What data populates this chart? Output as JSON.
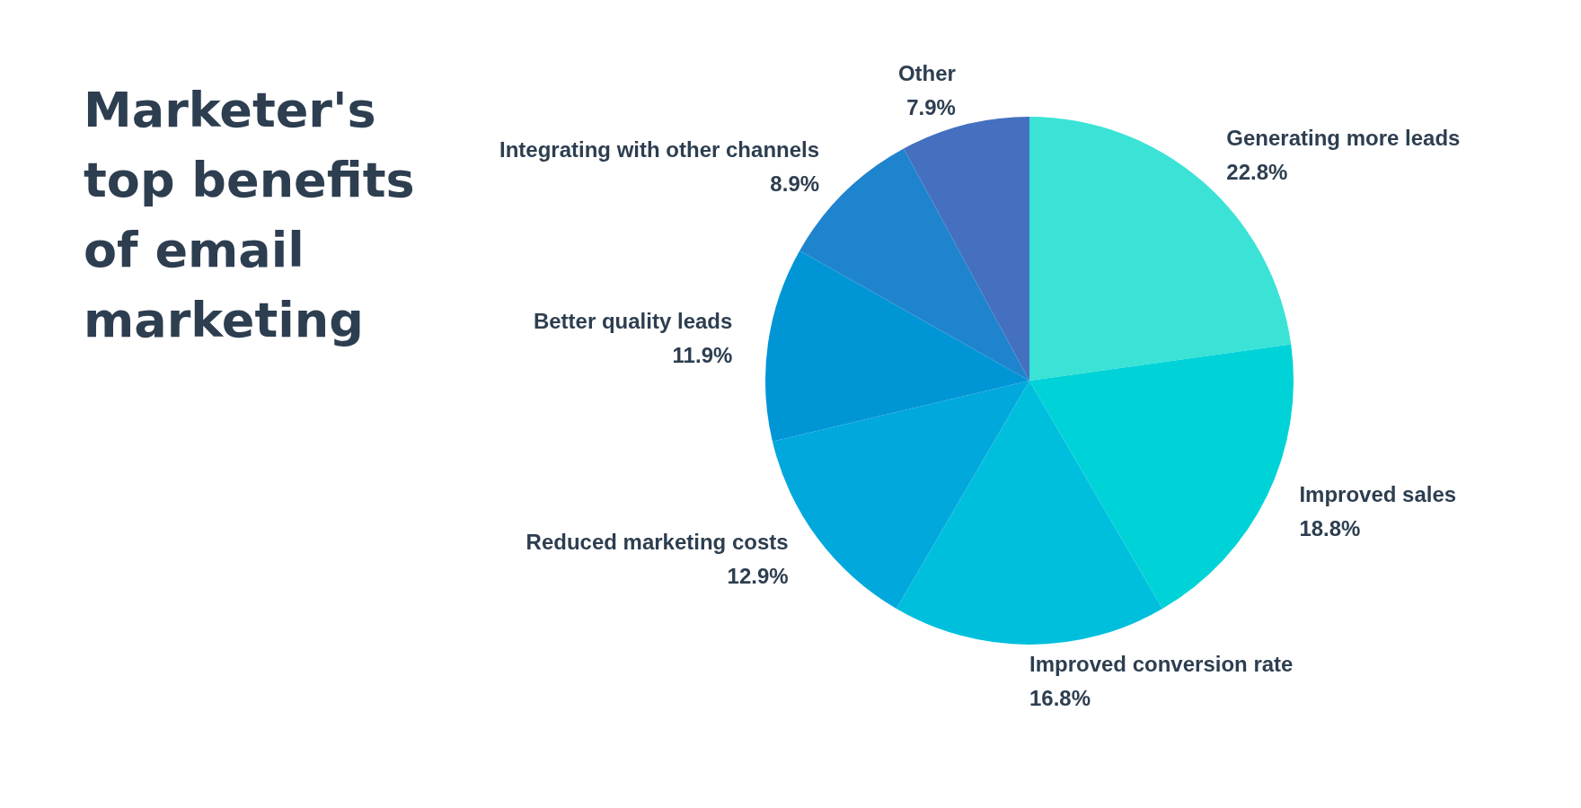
{
  "chart_data": {
    "type": "pie",
    "title": "Marketer's top benefits of email marketing",
    "categories": [
      "Generating more leads",
      "Improved sales",
      "Improved conversion rate",
      "Reduced marketing costs",
      "Better quality leads",
      "Integrating with other channels",
      "Other"
    ],
    "values": [
      22.8,
      18.8,
      16.8,
      12.9,
      11.9,
      8.9,
      7.9
    ],
    "value_labels": [
      "22.8%",
      "18.8%",
      "16.8%",
      "12.9%",
      "11.9%",
      "8.9%",
      "7.9%"
    ],
    "colors": [
      "#3ae3d6",
      "#00d3d8",
      "#00bfdd",
      "#00a8dc",
      "#0096d6",
      "#1f84ce",
      "#4470bf"
    ],
    "legend": false
  }
}
